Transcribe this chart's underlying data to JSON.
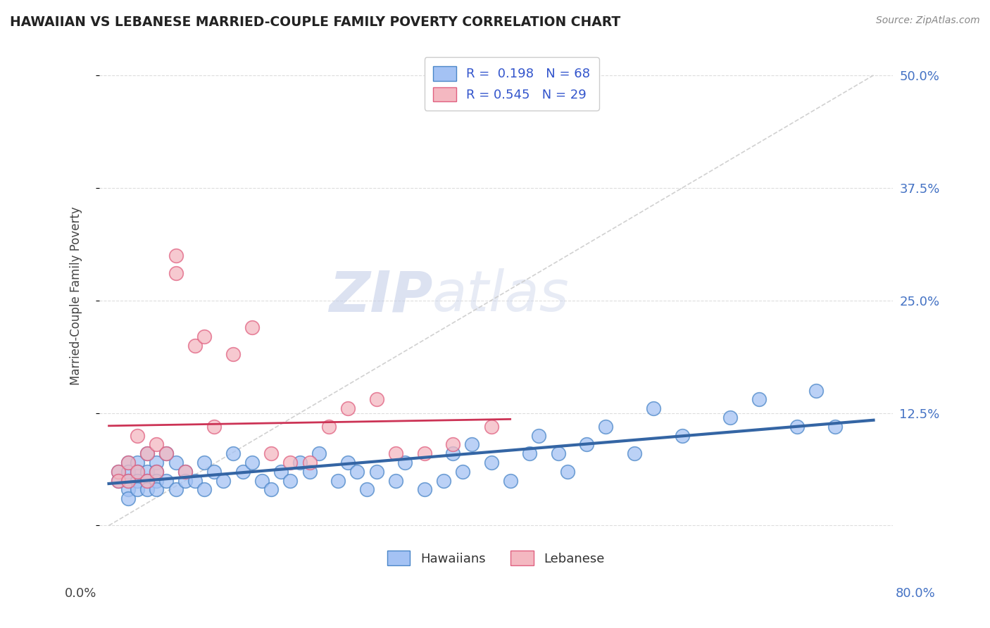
{
  "title": "HAWAIIAN VS LEBANESE MARRIED-COUPLE FAMILY POVERTY CORRELATION CHART",
  "source": "Source: ZipAtlas.com",
  "ylabel": "Married-Couple Family Poverty",
  "xlim": [
    0,
    80
  ],
  "ylim": [
    -2,
    53
  ],
  "yticks": [
    0,
    12.5,
    25.0,
    37.5,
    50.0
  ],
  "ytick_labels_right": [
    "",
    "12.5%",
    "25.0%",
    "37.5%",
    "50.0%"
  ],
  "hawaiian_R": "0.198",
  "hawaiian_N": "68",
  "lebanese_R": "0.545",
  "lebanese_N": "29",
  "blue_fill": "#a4c2f4",
  "blue_edge": "#4a86c8",
  "pink_fill": "#f4b8c1",
  "pink_edge": "#e06080",
  "blue_line": "#3465a4",
  "pink_line": "#cc3355",
  "diag_color": "#cccccc",
  "grid_color": "#dddddd",
  "right_axis_color": "#4472c4",
  "title_color": "#222222",
  "source_color": "#888888",
  "watermark_color": "#d0d8e8",
  "hawaiian_x": [
    1,
    1,
    2,
    2,
    2,
    2,
    2,
    3,
    3,
    3,
    3,
    4,
    4,
    4,
    4,
    5,
    5,
    5,
    5,
    6,
    6,
    7,
    7,
    8,
    8,
    9,
    10,
    10,
    11,
    12,
    13,
    14,
    15,
    16,
    17,
    18,
    19,
    20,
    21,
    22,
    24,
    25,
    26,
    27,
    28,
    30,
    31,
    33,
    35,
    36,
    37,
    38,
    40,
    42,
    44,
    45,
    47,
    48,
    50,
    52,
    55,
    57,
    60,
    65,
    68,
    72,
    74,
    76
  ],
  "hawaiian_y": [
    6,
    5,
    7,
    6,
    5,
    4,
    3,
    7,
    6,
    5,
    4,
    8,
    6,
    5,
    4,
    7,
    6,
    5,
    4,
    8,
    5,
    7,
    4,
    6,
    5,
    5,
    7,
    4,
    6,
    5,
    8,
    6,
    7,
    5,
    4,
    6,
    5,
    7,
    6,
    8,
    5,
    7,
    6,
    4,
    6,
    5,
    7,
    4,
    5,
    8,
    6,
    9,
    7,
    5,
    8,
    10,
    8,
    6,
    9,
    11,
    8,
    13,
    10,
    12,
    14,
    11,
    15,
    11
  ],
  "lebanese_x": [
    1,
    1,
    2,
    2,
    3,
    3,
    4,
    4,
    5,
    5,
    6,
    7,
    7,
    8,
    9,
    10,
    11,
    13,
    15,
    17,
    19,
    21,
    23,
    25,
    28,
    30,
    33,
    36,
    40
  ],
  "lebanese_y": [
    6,
    5,
    7,
    5,
    10,
    6,
    8,
    5,
    9,
    6,
    8,
    30,
    28,
    6,
    20,
    21,
    11,
    19,
    22,
    8,
    7,
    7,
    11,
    13,
    14,
    8,
    8,
    9,
    11
  ],
  "watermark_zip": "ZIP",
  "watermark_atlas": "atlas"
}
